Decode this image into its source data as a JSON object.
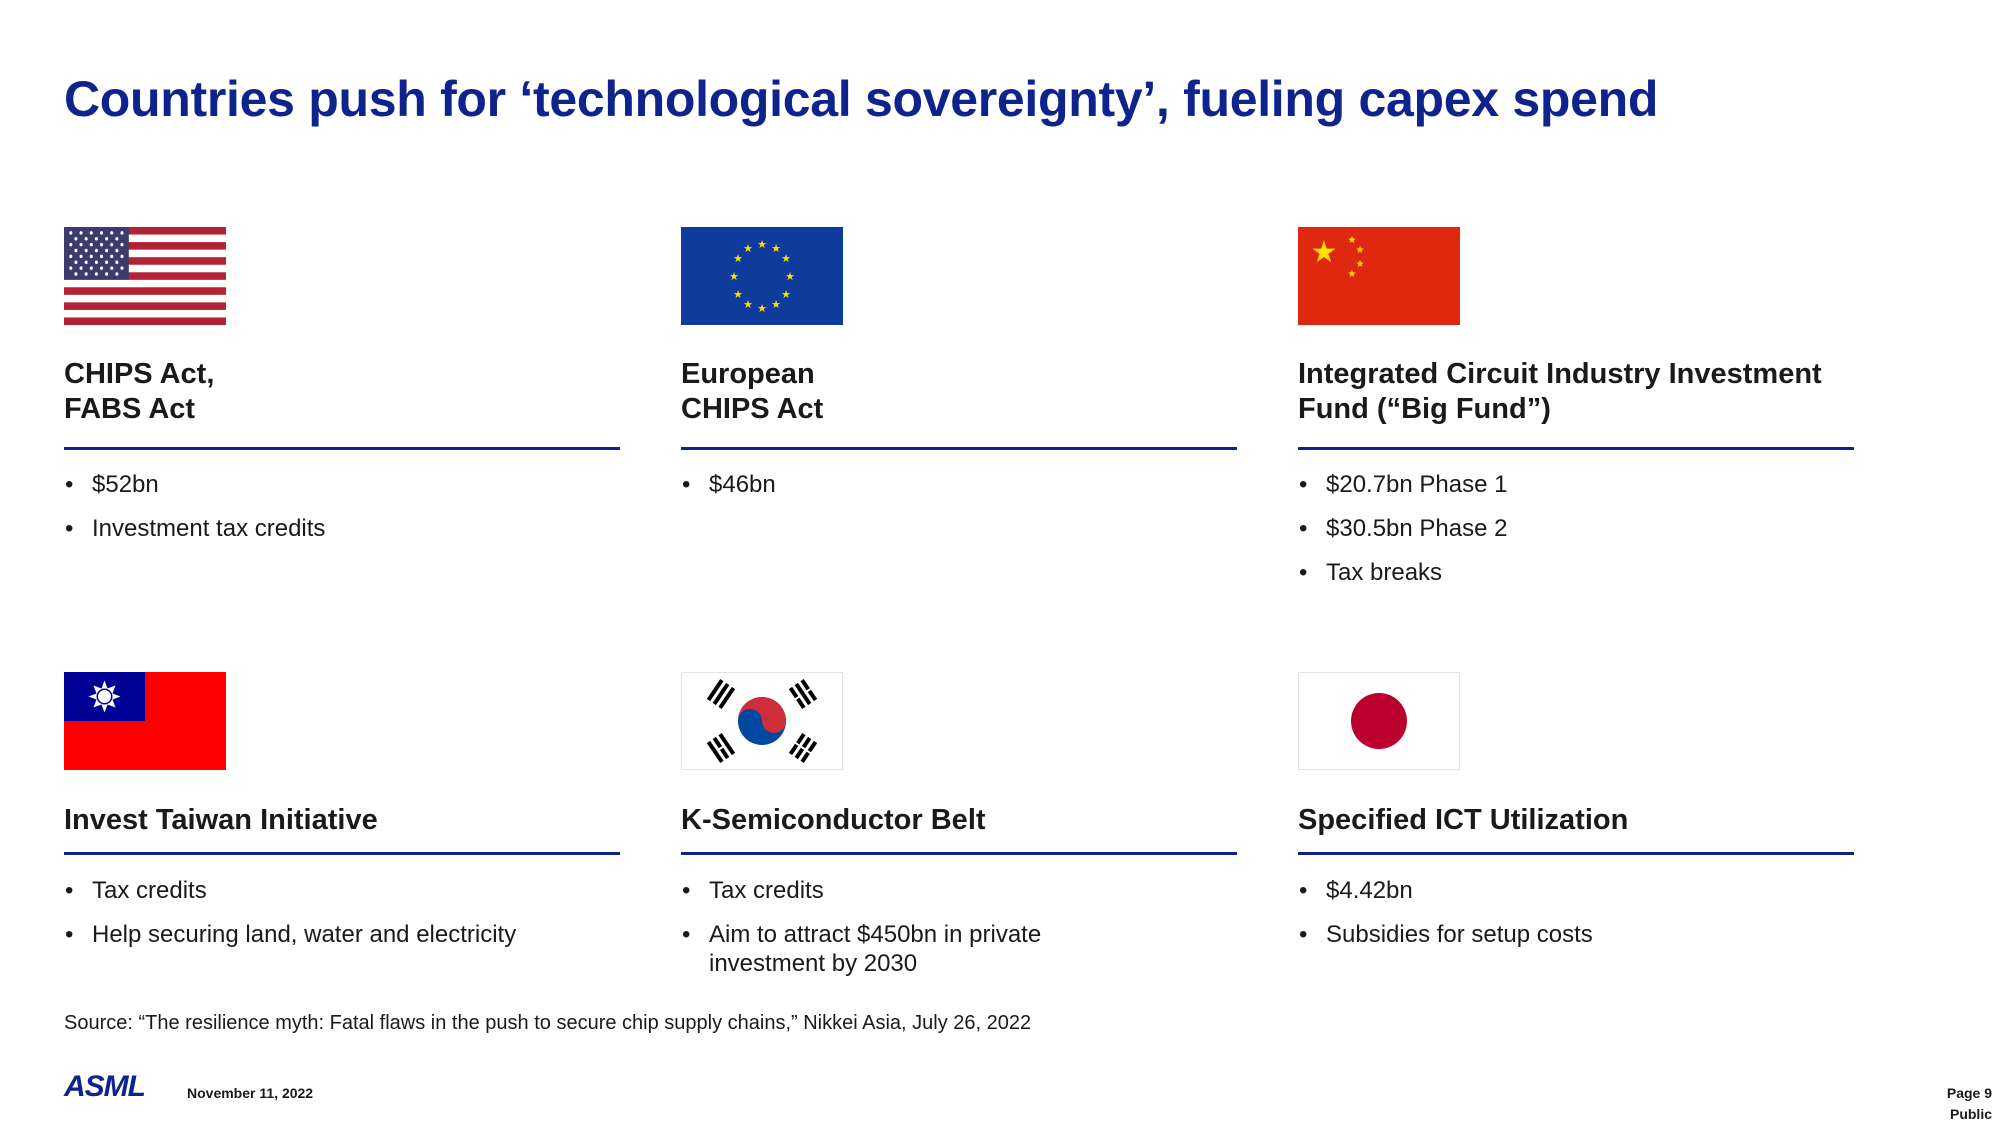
{
  "title": "Countries push for ‘technological sovereignty’, fueling capex spend",
  "colors": {
    "accent": "#0f238c"
  },
  "cards": [
    {
      "flag": "us-flag-icon",
      "heading": [
        "CHIPS Act,",
        "FABS Act"
      ],
      "bullets": [
        "$52bn",
        "Investment tax credits"
      ]
    },
    {
      "flag": "eu-flag-icon",
      "heading": [
        "European",
        "CHIPS Act"
      ],
      "bullets": [
        "$46bn"
      ]
    },
    {
      "flag": "china-flag-icon",
      "heading": [
        "Integrated Circuit Industry Investment",
        "Fund (“Big Fund”)"
      ],
      "bullets": [
        "$20.7bn Phase 1",
        "$30.5bn Phase 2",
        "Tax breaks"
      ]
    },
    {
      "flag": "taiwan-flag-icon",
      "heading": [
        "Invest Taiwan Initiative"
      ],
      "bullets": [
        "Tax credits",
        "Help securing land, water and electricity"
      ]
    },
    {
      "flag": "korea-flag-icon",
      "heading": [
        "K-Semiconductor Belt"
      ],
      "bullets": [
        "Tax credits",
        "Aim to attract $450bn in private investment by 2030"
      ]
    },
    {
      "flag": "japan-flag-icon",
      "heading": [
        "Specified ICT Utilization"
      ],
      "bullets": [
        "$4.42bn",
        "Subsidies for setup costs"
      ]
    }
  ],
  "bullet_char": "•",
  "source": "Source: “The resilience myth: Fatal flaws in the push to secure chip supply chains,” Nikkei Asia, July 26, 2022",
  "footer": {
    "logo": "ASML",
    "date": "November 11, 2022",
    "page": "Page 9",
    "classification": "Public"
  }
}
